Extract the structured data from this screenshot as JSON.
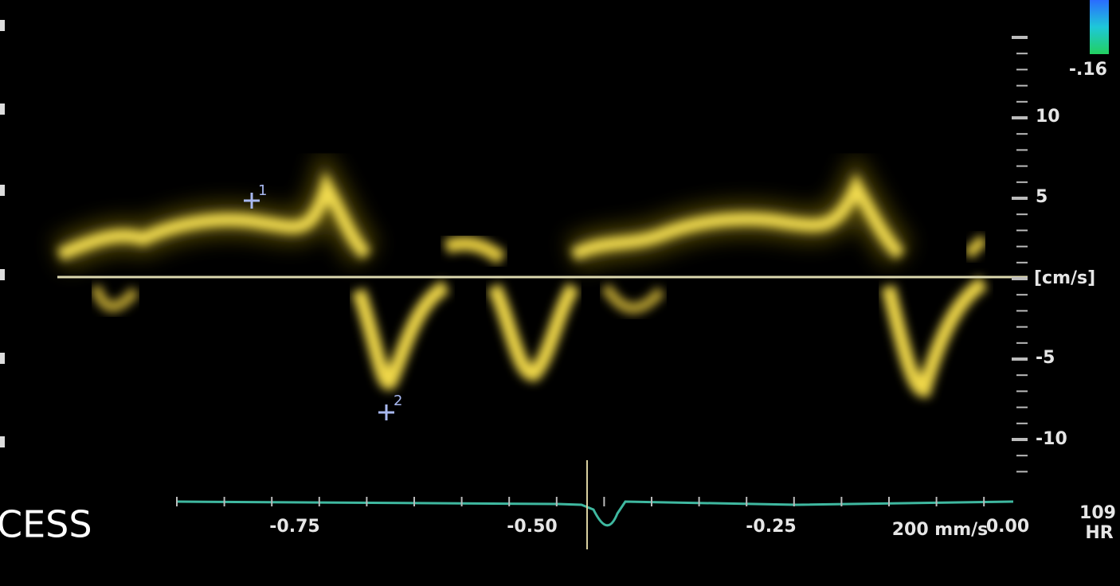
{
  "color_bar": {
    "label": "-.16"
  },
  "velocity_axis": {
    "ticks": [
      "10",
      "5",
      "-5",
      "-10"
    ],
    "unit": "[cm/s]"
  },
  "time_axis": {
    "ticks": [
      "-0.75",
      "-0.50",
      "-0.25",
      "0.00"
    ],
    "sweep_speed": "200 mm/s"
  },
  "heart_rate": {
    "value": "109",
    "label": "HR"
  },
  "side_label": "CESS",
  "calipers": [
    "1",
    "2"
  ]
}
